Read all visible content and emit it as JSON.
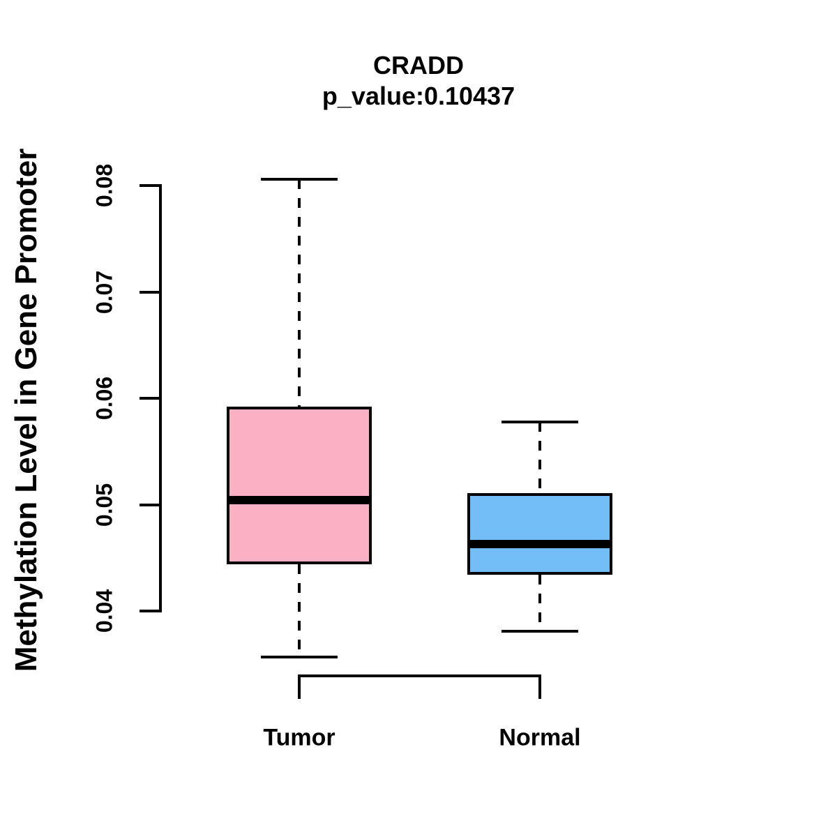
{
  "title": "CRADD",
  "subtitle": "p_value:0.10437",
  "y_axis_label": "Methylation Level in Gene Promoter",
  "chart_data": {
    "type": "boxplot",
    "title": "CRADD",
    "subtitle": "p_value:0.10437",
    "p_value": "0.10437",
    "ylabel": "Methylation Level in Gene Promoter",
    "xlabel": "",
    "categories": [
      "Tumor",
      "Normal"
    ],
    "series": [
      {
        "name": "Tumor",
        "color": "#fbb0c4",
        "min": 0.0357,
        "q1": 0.0444,
        "median": 0.0504,
        "q3": 0.0592,
        "max": 0.0806
      },
      {
        "name": "Normal",
        "color": "#74bef8",
        "min": 0.0381,
        "q1": 0.0434,
        "median": 0.0463,
        "q3": 0.0511,
        "max": 0.0578
      }
    ],
    "yticks": [
      0.04,
      0.05,
      0.06,
      0.07,
      0.08
    ],
    "ytick_labels": [
      "0.04",
      "0.05",
      "0.06",
      "0.07",
      "0.08"
    ],
    "ylim": [
      0.0357,
      0.0806
    ],
    "grid": false,
    "legend": "none",
    "line_color": "#000000",
    "background": "#ffffff"
  }
}
